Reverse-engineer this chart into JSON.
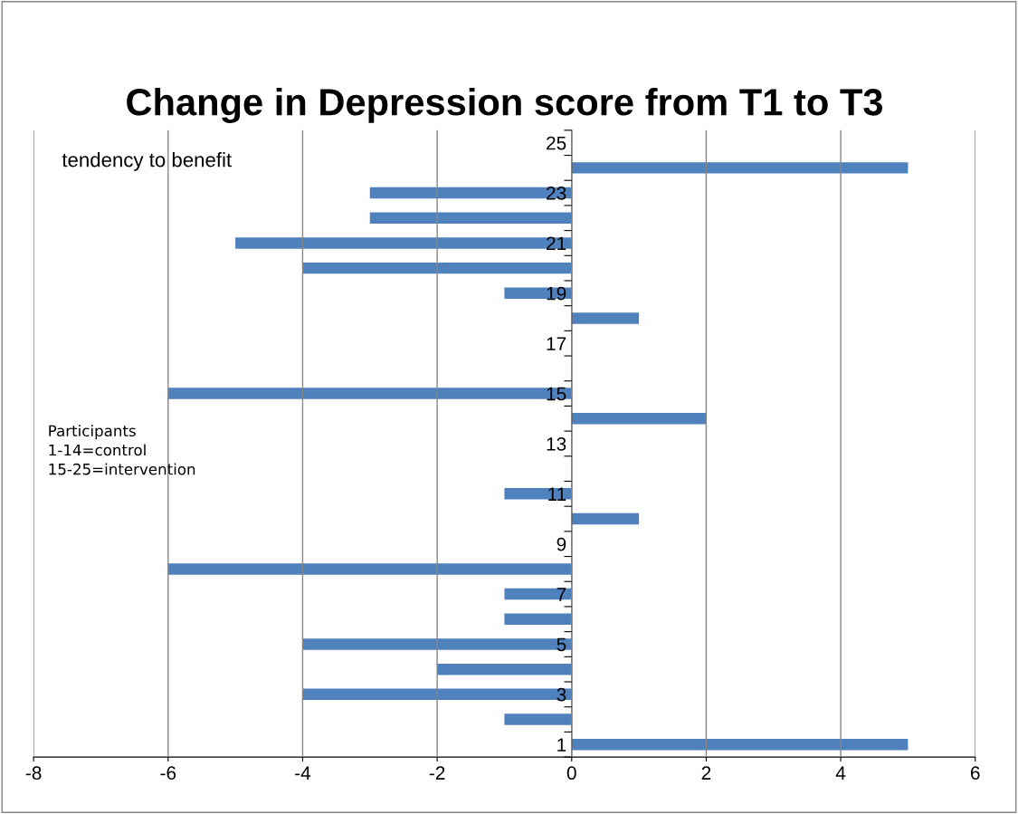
{
  "chart_data": {
    "type": "bar",
    "orientation": "horizontal",
    "title": "Change in Depression score from T1 to T3",
    "categories": [
      "25",
      null,
      "23",
      null,
      "21",
      null,
      "19",
      null,
      "17",
      null,
      "15",
      null,
      "13",
      null,
      "11",
      null,
      "9",
      null,
      "7",
      null,
      "5",
      null,
      "3",
      null,
      "1"
    ],
    "values": [
      0,
      5,
      -3,
      -3,
      -5,
      -4,
      -1,
      1,
      0,
      0,
      -6,
      2,
      0,
      0,
      -1,
      1,
      0,
      -6,
      -1,
      -1,
      -4,
      -2,
      -4,
      -1,
      5
    ],
    "color": "#4f81bd",
    "xlim": [
      -8,
      6
    ],
    "xticks": [
      -8,
      -6,
      -4,
      -2,
      0,
      2,
      4,
      6
    ],
    "grid": "x",
    "annotations": [
      "tendency to benefit",
      "Participants\n1-14=control\n15-25=intervention"
    ]
  }
}
